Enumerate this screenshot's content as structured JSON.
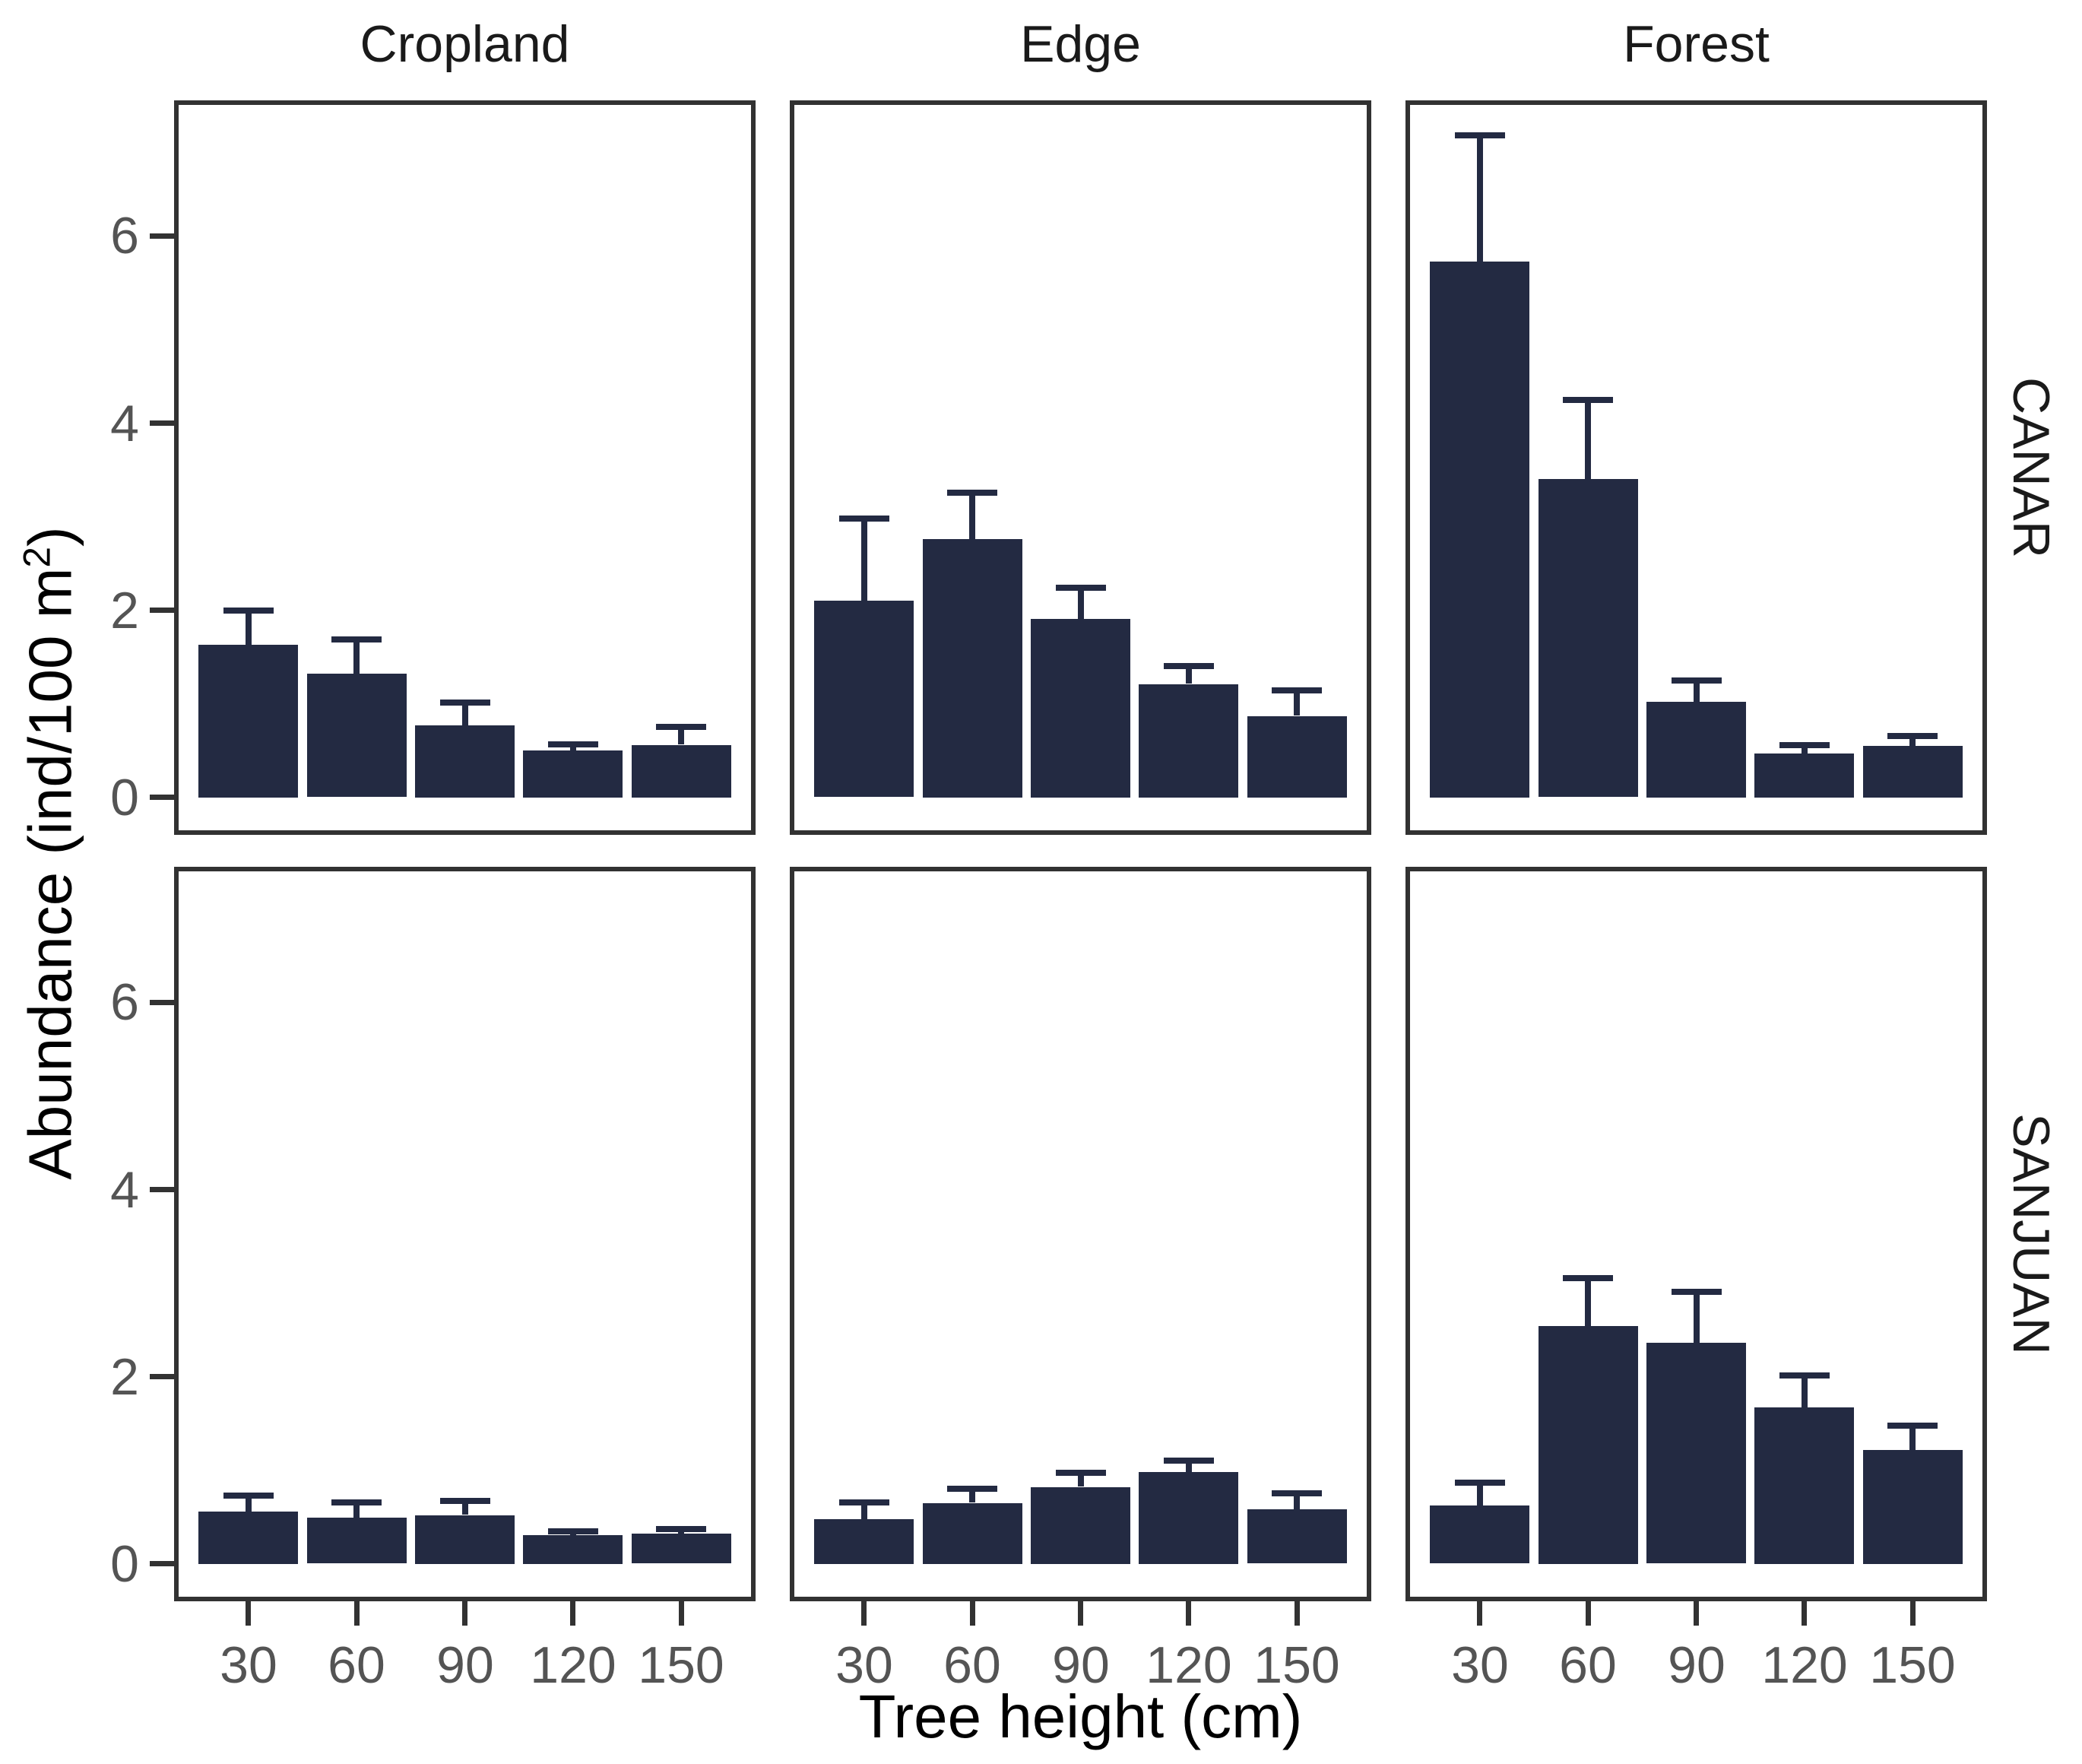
{
  "chart_data": {
    "type": "bar",
    "title": "",
    "facet_columns": [
      "Cropland",
      "Edge",
      "Forest"
    ],
    "facet_rows": [
      "CANAR",
      "SANJUAN"
    ],
    "xlabel": "Tree height (cm)",
    "ylabel": "Abundance (ind/100 m2)",
    "ylabel_parts": {
      "pre": "Abundance (ind/100 m",
      "sup": "2",
      "post": ")"
    },
    "x_categories": [
      "30",
      "60",
      "90",
      "120",
      "150"
    ],
    "y_ticks": [
      0,
      2,
      4,
      6
    ],
    "ylim": [
      0,
      7.45
    ],
    "grid": false,
    "legend": "none",
    "error_bars": "upper",
    "panels": [
      {
        "row": "CANAR",
        "col": "Cropland",
        "values": [
          1.63,
          1.32,
          0.77,
          0.5,
          0.56
        ],
        "errors_upper": [
          0.37,
          0.37,
          0.24,
          0.07,
          0.19
        ]
      },
      {
        "row": "CANAR",
        "col": "Edge",
        "values": [
          2.1,
          2.76,
          1.91,
          1.21,
          0.87
        ],
        "errors_upper": [
          0.88,
          0.5,
          0.33,
          0.19,
          0.27
        ]
      },
      {
        "row": "CANAR",
        "col": "Forest",
        "values": [
          5.73,
          3.4,
          1.02,
          0.47,
          0.55
        ],
        "errors_upper": [
          1.35,
          0.85,
          0.23,
          0.09,
          0.11
        ]
      },
      {
        "row": "SANJUAN",
        "col": "Cropland",
        "values": [
          0.56,
          0.49,
          0.52,
          0.31,
          0.32
        ],
        "errors_upper": [
          0.17,
          0.17,
          0.15,
          0.04,
          0.05
        ]
      },
      {
        "row": "SANJUAN",
        "col": "Edge",
        "values": [
          0.48,
          0.65,
          0.82,
          0.98,
          0.58
        ],
        "errors_upper": [
          0.18,
          0.15,
          0.15,
          0.12,
          0.17
        ]
      },
      {
        "row": "SANJUAN",
        "col": "Forest",
        "values": [
          0.62,
          2.54,
          2.36,
          1.67,
          1.22
        ],
        "errors_upper": [
          0.25,
          0.51,
          0.55,
          0.34,
          0.26
        ]
      }
    ],
    "colors": {
      "bar": "#232a42",
      "error_bar": "#232a42",
      "panel_border": "#323232",
      "tick_mark": "#323232",
      "tick_label": "#545454",
      "axis_title": "#000000",
      "facet_label": "#1a1a1a",
      "background": "#ffffff"
    }
  }
}
